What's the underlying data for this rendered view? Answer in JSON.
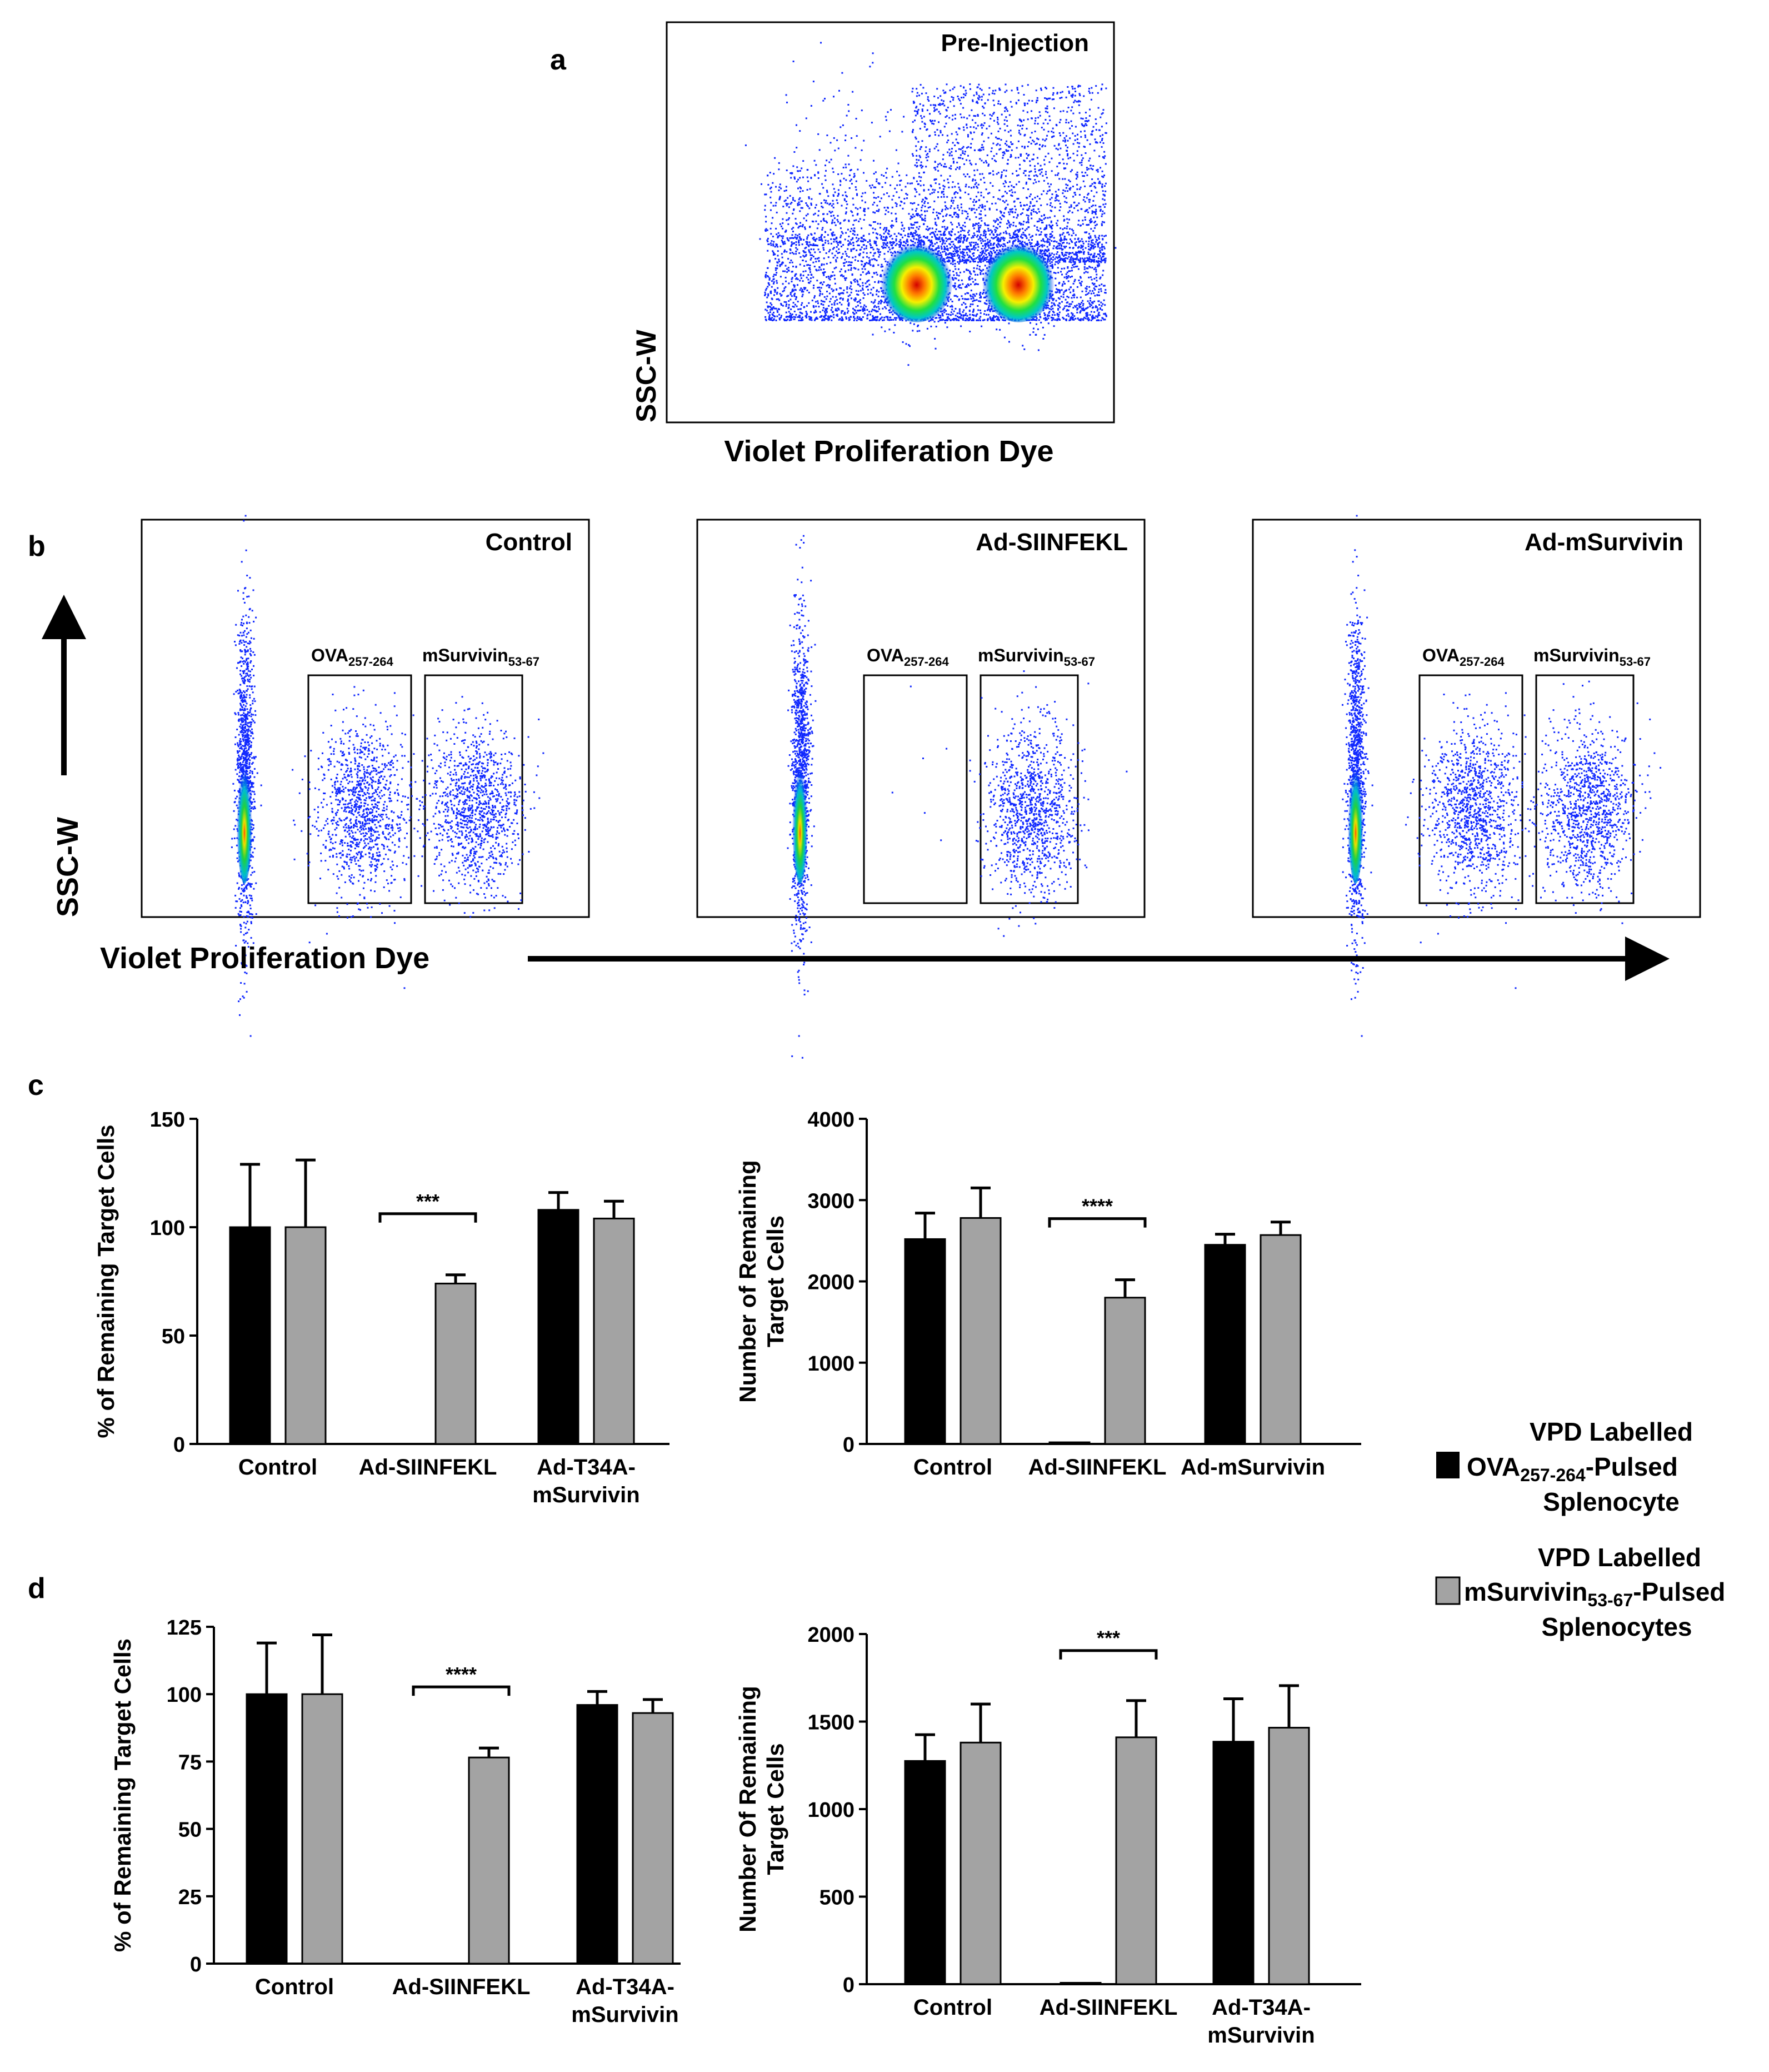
{
  "panel_letters": {
    "a": "a",
    "b": "b",
    "c": "c",
    "d": "d"
  },
  "panel_a": {
    "title": "Pre-Injection",
    "ylabel": "SSC-W",
    "xlabel": "Violet Proliferation Dye"
  },
  "panel_b": {
    "ylabel": "SSC-W",
    "xlabel": "Violet Proliferation Dye",
    "plots": [
      {
        "title": "Control"
      },
      {
        "title": "Ad-SIINFEKL"
      },
      {
        "title": "Ad-mSurvivin"
      }
    ],
    "gate_ova": {
      "name": "OVA",
      "sub": "257-264"
    },
    "gate_msurv": {
      "name": "mSurvivin",
      "sub": "53-67"
    }
  },
  "legend": {
    "ova_line1": "VPD Labelled",
    "ova_line2_pre": "OVA",
    "ova_line2_sub": "257-264",
    "ova_line2_post": "-Pulsed",
    "ova_line3": "Splenocyte",
    "msurv_line1": "VPD Labelled",
    "msurv_line2_pre": "mSurvivin",
    "msurv_line2_sub": "53-67",
    "msurv_line2_post": "-Pulsed",
    "msurv_line3": "Splenocytes",
    "colors": {
      "ova": "#000000",
      "msurv": "#a3a3a3"
    }
  },
  "chart_data": [
    {
      "id": "c-left",
      "type": "bar",
      "ylabel": "% of Remaining Target Cells",
      "ylim": [
        0,
        150
      ],
      "yticks": [
        0,
        50,
        100,
        150
      ],
      "categories": [
        [
          "Control"
        ],
        [
          "Ad-SIINFEKL"
        ],
        [
          "Ad-T34A-",
          "mSurvivin"
        ]
      ],
      "series": [
        {
          "name": "VPD Labelled OVA257-264-Pulsed Splenocyte",
          "values": [
            100,
            0,
            108
          ],
          "errors": [
            29,
            0,
            8
          ]
        },
        {
          "name": "VPD Labelled mSurvivin53-67-Pulsed Splenocytes",
          "values": [
            100,
            74,
            104
          ],
          "errors": [
            31,
            4,
            8
          ]
        }
      ],
      "significance": [
        {
          "category": 1,
          "label": "***"
        }
      ]
    },
    {
      "id": "c-right",
      "type": "bar",
      "ylabel": "Number of Remaining Target Cells",
      "ylim": [
        0,
        4000
      ],
      "yticks": [
        0,
        1000,
        2000,
        3000,
        4000
      ],
      "categories": [
        [
          "Control"
        ],
        [
          "Ad-SIINFEKL"
        ],
        [
          "Ad-mSurvivin"
        ]
      ],
      "series": [
        {
          "name": "VPD Labelled OVA257-264-Pulsed Splenocyte",
          "values": [
            2520,
            20,
            2450
          ],
          "errors": [
            320,
            0,
            130
          ]
        },
        {
          "name": "VPD Labelled mSurvivin53-67-Pulsed Splenocytes",
          "values": [
            2780,
            1800,
            2570
          ],
          "errors": [
            370,
            220,
            160
          ]
        }
      ],
      "significance": [
        {
          "category": 1,
          "label": "****"
        }
      ]
    },
    {
      "id": "d-left",
      "type": "bar",
      "ylabel": "% of Remaining Target Cells",
      "ylim": [
        0,
        125
      ],
      "yticks": [
        0,
        25,
        50,
        75,
        100,
        125
      ],
      "categories": [
        [
          "Control"
        ],
        [
          "Ad-SIINFEKL"
        ],
        [
          "Ad-T34A-",
          "mSurvivin"
        ]
      ],
      "series": [
        {
          "name": "VPD Labelled OVA257-264-Pulsed Splenocyte",
          "values": [
            100,
            0,
            96
          ],
          "errors": [
            19,
            0,
            5
          ]
        },
        {
          "name": "VPD Labelled mSurvivin53-67-Pulsed Splenocytes",
          "values": [
            100,
            76.5,
            93
          ],
          "errors": [
            22,
            3.5,
            5
          ]
        }
      ],
      "significance": [
        {
          "category": 1,
          "label": "****"
        }
      ]
    },
    {
      "id": "d-right",
      "type": "bar",
      "ylabel": "Number Of Remaining Target Cells",
      "ylim": [
        0,
        2000
      ],
      "yticks": [
        0,
        500,
        1000,
        1500,
        2000
      ],
      "categories": [
        [
          "Control"
        ],
        [
          "Ad-SIINFEKL"
        ],
        [
          "Ad-T34A-",
          "mSurvivin"
        ]
      ],
      "series": [
        {
          "name": "VPD Labelled OVA257-264-Pulsed Splenocyte",
          "values": [
            1275,
            8,
            1385
          ],
          "errors": [
            150,
            0,
            245
          ]
        },
        {
          "name": "VPD Labelled mSurvivin53-67-Pulsed Splenocytes",
          "values": [
            1380,
            1410,
            1465
          ],
          "errors": [
            220,
            210,
            240
          ]
        }
      ],
      "significance": [
        {
          "category": 1,
          "label": "***"
        }
      ]
    }
  ]
}
